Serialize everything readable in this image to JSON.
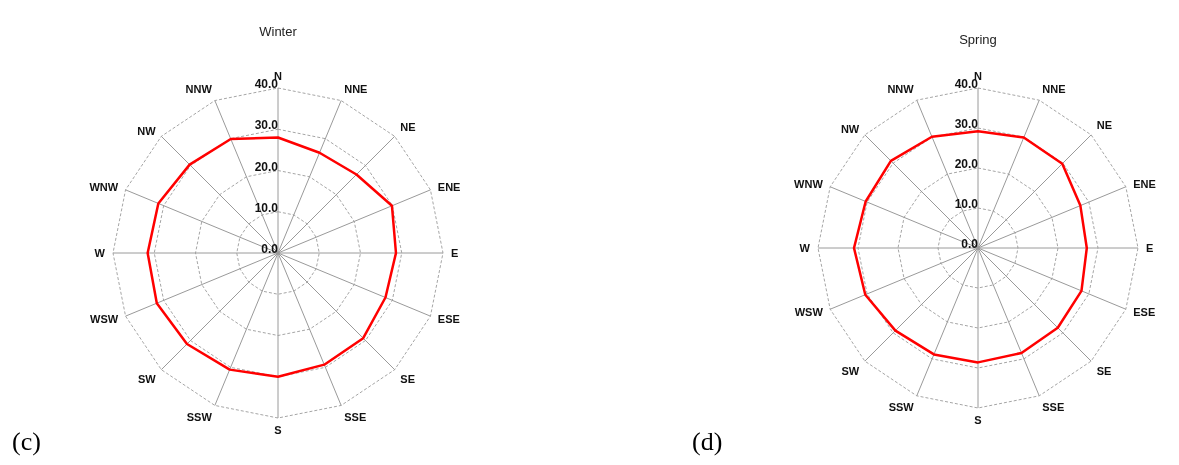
{
  "chart_data": [
    {
      "type": "radar",
      "title": "Winter",
      "categories": [
        "N",
        "NNE",
        "NE",
        "ENE",
        "E",
        "ESE",
        "SE",
        "SSE",
        "S",
        "SSW",
        "SW",
        "WSW",
        "W",
        "WNW",
        "NW",
        "NNW"
      ],
      "series": [
        {
          "color": "#ff0000",
          "values": [
            28.0,
            26.3,
            26.9,
            29.9,
            28.6,
            28.2,
            29.2,
            29.3,
            30.0,
            30.6,
            31.2,
            31.8,
            31.6,
            31.4,
            30.3,
            29.9
          ]
        }
      ],
      "ylim": [
        0,
        40
      ],
      "yticks": [
        {
          "value": 0,
          "label": "0.0"
        },
        {
          "value": 10,
          "label": "10.0"
        },
        {
          "value": 20,
          "label": "20.0"
        },
        {
          "value": 30,
          "label": "30.0"
        },
        {
          "value": 40,
          "label": "40.0"
        }
      ],
      "grid": true,
      "annotations": [
        "(c)"
      ]
    },
    {
      "type": "radar",
      "title": "Spring",
      "categories": [
        "N",
        "NNE",
        "NE",
        "ENE",
        "E",
        "ESE",
        "SE",
        "SSE",
        "S",
        "SSW",
        "SW",
        "WSW",
        "W",
        "WNW",
        "NW",
        "NNW"
      ],
      "series": [
        {
          "color": "#ff0000",
          "values": [
            29.2,
            29.9,
            29.8,
            27.7,
            27.2,
            28.0,
            28.2,
            28.4,
            28.6,
            28.8,
            29.2,
            30.5,
            31.0,
            30.4,
            30.8,
            30.1
          ]
        }
      ],
      "ylim": [
        0,
        40
      ],
      "yticks": [
        {
          "value": 0,
          "label": "0.0"
        },
        {
          "value": 10,
          "label": "10.0"
        },
        {
          "value": 20,
          "label": "20.0"
        },
        {
          "value": 30,
          "label": "30.0"
        },
        {
          "value": 40,
          "label": "40.0"
        }
      ],
      "grid": true,
      "annotations": [
        "(d)"
      ]
    }
  ]
}
